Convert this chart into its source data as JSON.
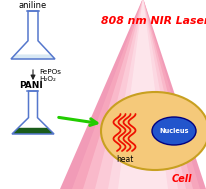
{
  "bg_color": "#ffffff",
  "laser_label": "808 nm NIR Laser",
  "laser_color": "#ff0000",
  "cell_label": "Cell",
  "cell_label_color": "#ff0000",
  "nucleus_label": "Nucleus",
  "heat_label": "heat",
  "aniline_label": "aniline",
  "fepos_label": "FePOs",
  "h2o2_label": "H₂O₂",
  "pani_label": "PANI",
  "cell_fill_color": "#f5c97a",
  "cell_edge_color": "#c8a020",
  "nucleus_fill_color": "#2255cc",
  "nucleus_edge_color": "#000080",
  "flask_edge_color": "#5577cc",
  "flask_fill_aniline": "#d8e8f4",
  "flask_fill_pani": "#1a5c1a",
  "arrow_green_color": "#22cc00",
  "arrow_black_color": "#222222",
  "wavy_color": "#ee1100",
  "cone_outer_color": "#ff80aa",
  "cone_mid_color": "#ffaac0",
  "cone_inner_color": "#ffd0dc",
  "cone_center_color": "#fff0f4"
}
